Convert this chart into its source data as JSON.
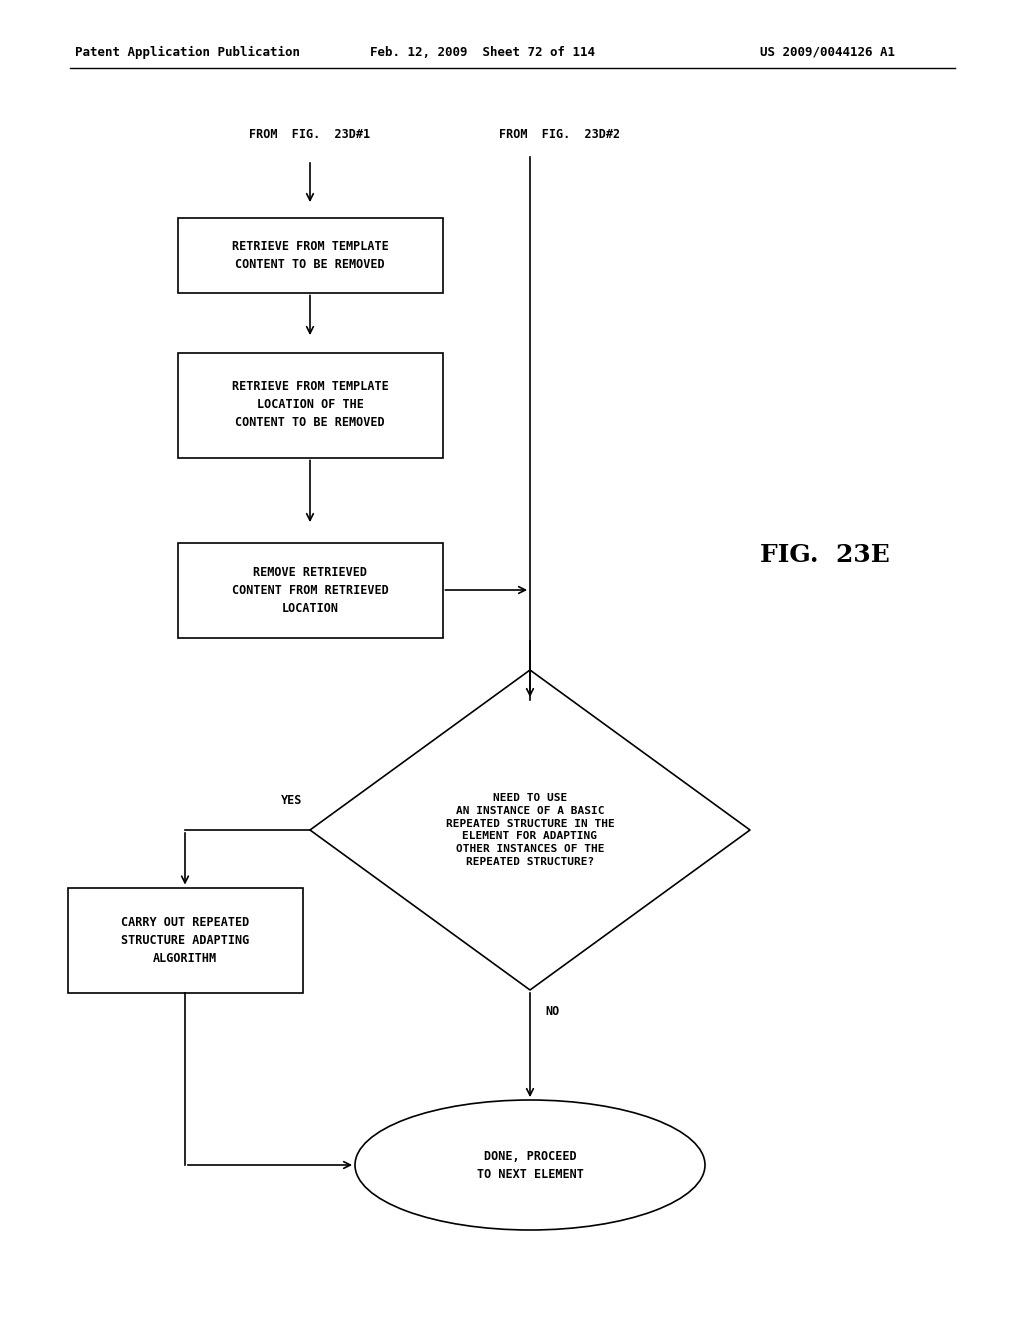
{
  "header_left": "Patent Application Publication",
  "header_middle": "Feb. 12, 2009  Sheet 72 of 114",
  "header_right": "US 2009/0044126 A1",
  "fig_label": "FIG.  23E",
  "from_label_1": "FROM  FIG.  23D#1",
  "from_label_2": "FROM  FIG.  23D#2",
  "box1_text": "RETRIEVE FROM TEMPLATE\nCONTENT TO BE REMOVED",
  "box2_text": "RETRIEVE FROM TEMPLATE\nLOCATION OF THE\nCONTENT TO BE REMOVED",
  "box3_text": "REMOVE RETRIEVED\nCONTENT FROM RETRIEVED\nLOCATION",
  "diamond_text": "NEED TO USE\nAN INSTANCE OF A BASIC\nREPEATED STRUCTURE IN THE\nELEMENT FOR ADAPTING\nOTHER INSTANCES OF THE\nREPEATED STRUCTURE?",
  "box4_text": "CARRY OUT REPEATED\nSTRUCTURE ADAPTING\nALGORITHM",
  "oval_text": "DONE, PROCEED\nTO NEXT ELEMENT",
  "yes_label": "YES",
  "no_label": "NO",
  "bg_color": "#ffffff",
  "line_color": "#000000",
  "text_color": "#000000",
  "font_size": 8.5,
  "header_font_size": 9.0
}
